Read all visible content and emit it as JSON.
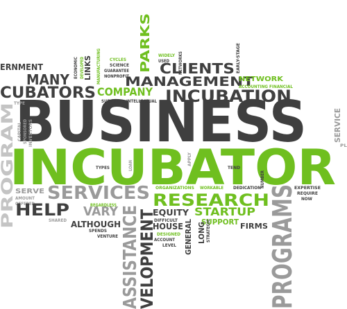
{
  "palette": {
    "dark": "#3f3f3f",
    "grey": "#9a9a9a",
    "light": "#c4c4c4",
    "green": "#6fbf1f"
  },
  "words": {
    "business": "BUSINESS",
    "incubator": "INCUBATOR",
    "programs": "PROGRAMS",
    "program": "PROGRAM",
    "research": "RESEARCH",
    "services": "SERVICES",
    "assistance": "ASSISTANCE",
    "development": "VELOPMENT",
    "incubation": "INCUBATION",
    "incubators": "CUBATORS",
    "management": "MANAGEMENT",
    "clients": "CLIENTS",
    "company": "COMPANY",
    "many": "MANY",
    "parks": "PARKS",
    "government": "ERNMENT",
    "help": "HELP",
    "vary": "VARY",
    "startup": "STARTUP",
    "support": "SUPPORT",
    "equity": "EQUITY",
    "house": "HOUSE",
    "firms": "FIRMS",
    "general": "GENERAL",
    "long": "LONG",
    "serve": "SERVE",
    "although": "ALTHOUGH",
    "network": "NETWORK",
    "links": "LINKS",
    "service": "SERVICE",
    "accounting_financial": "ACCOUNTING FINANCIAL",
    "widely": "WIDELY",
    "used": "USED",
    "networks": "NETWORKS",
    "early_stage": "EARLY-STAGE",
    "economic": "ECONOMIC",
    "developed": "DEVELOPED",
    "manufacturing": "MANUFACTURING",
    "cycles": "CYCLES",
    "science": "SCIENCE",
    "guarantee": "GUARANTEE",
    "nonprofit": "NONPROFIT",
    "survival": "SURVIVAL",
    "intellectual": "INTELLECTUAL",
    "type": "TYPE",
    "capital": "CAPITAL",
    "investors": "INVESTORS",
    "sponsored": "SPONSORED",
    "stay": "STAY",
    "types": "TYPES",
    "loan": "LOAN",
    "apply": "APPLY",
    "tend": "TEND",
    "number": "NUMBER",
    "organizations": "ORGANIZATIONS",
    "workable": "WORKABLE",
    "dedication": "DEDICATION",
    "expertise": "EXPERTISE",
    "require": "REQUIRE",
    "now": "NOW",
    "amount": "AMOUNT",
    "offered": "OFFERED",
    "shared": "SHARED",
    "regardless": "REGARDLESS",
    "spends": "SPENDS",
    "venture": "VENTURE",
    "difficult": "DIFFICULT",
    "designed": "DESIGNED",
    "account": "ACCOUNT",
    "level": "LEVEL",
    "strategic": "STRATEGIC",
    "pl": "PL"
  }
}
